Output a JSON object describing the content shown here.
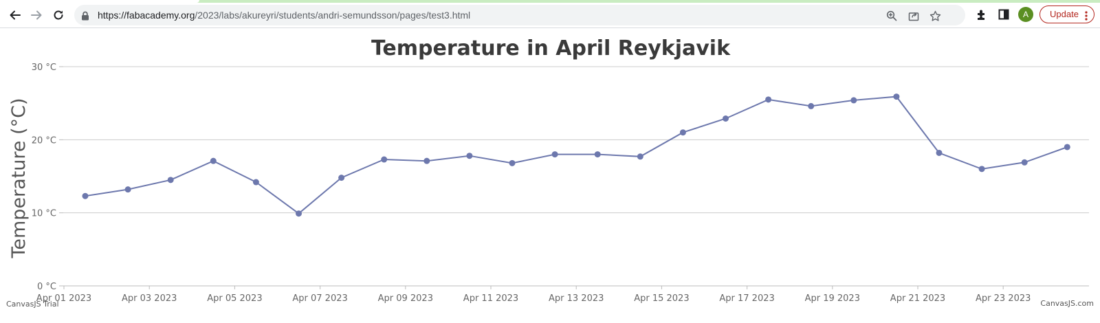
{
  "browser": {
    "url_host": "https://fabacademy.org",
    "url_path": "/2023/labs/akureyri/students/andri-semundsson/pages/test3.html",
    "avatar_initial": "A",
    "update_label": "Update",
    "icons": [
      "back-icon",
      "forward-icon",
      "reload-icon",
      "lock-icon",
      "zoom-icon",
      "share-icon",
      "star-icon",
      "extensions-icon",
      "side-panel-icon",
      "menu-dots-icon"
    ]
  },
  "credits": {
    "left": "CanvasJS Trial",
    "right": "CanvasJS.com"
  },
  "colors": {
    "line": "#6d78ad",
    "grid": "#cccccc",
    "title": "#3a3a3a"
  },
  "chart_data": {
    "type": "line",
    "title": "Temperature in April Reykjavik",
    "ylabel": "Temperature (°C)",
    "xlabel": "",
    "ylim": [
      0,
      30
    ],
    "y_ticks": [
      {
        "value": 0,
        "label": "0 °C"
      },
      {
        "value": 10,
        "label": "10 °C"
      },
      {
        "value": 20,
        "label": "20 °C"
      },
      {
        "value": 30,
        "label": "30 °C"
      }
    ],
    "x_ticks": [
      {
        "value": "2023-04-01",
        "label": "Apr 01 2023"
      },
      {
        "value": "2023-04-03",
        "label": "Apr 03 2023"
      },
      {
        "value": "2023-04-05",
        "label": "Apr 05 2023"
      },
      {
        "value": "2023-04-07",
        "label": "Apr 07 2023"
      },
      {
        "value": "2023-04-09",
        "label": "Apr 09 2023"
      },
      {
        "value": "2023-04-11",
        "label": "Apr 11 2023"
      },
      {
        "value": "2023-04-13",
        "label": "Apr 13 2023"
      },
      {
        "value": "2023-04-15",
        "label": "Apr 15 2023"
      },
      {
        "value": "2023-04-17",
        "label": "Apr 17 2023"
      },
      {
        "value": "2023-04-19",
        "label": "Apr 19 2023"
      },
      {
        "value": "2023-04-21",
        "label": "Apr 21 2023"
      },
      {
        "value": "2023-04-23",
        "label": "Apr 23 2023"
      }
    ],
    "grid": true,
    "series": [
      {
        "points": [
          {
            "x": "2023-04-01",
            "y": 12.3
          },
          {
            "x": "2023-04-02",
            "y": 13.2
          },
          {
            "x": "2023-04-03",
            "y": 14.5
          },
          {
            "x": "2023-04-04",
            "y": 17.1
          },
          {
            "x": "2023-04-05",
            "y": 14.2
          },
          {
            "x": "2023-04-06",
            "y": 9.9
          },
          {
            "x": "2023-04-07",
            "y": 14.8
          },
          {
            "x": "2023-04-08",
            "y": 17.3
          },
          {
            "x": "2023-04-09",
            "y": 17.1
          },
          {
            "x": "2023-04-10",
            "y": 17.8
          },
          {
            "x": "2023-04-11",
            "y": 16.8
          },
          {
            "x": "2023-04-12",
            "y": 18.0
          },
          {
            "x": "2023-04-13",
            "y": 18.0
          },
          {
            "x": "2023-04-14",
            "y": 17.7
          },
          {
            "x": "2023-04-15",
            "y": 21.0
          },
          {
            "x": "2023-04-16",
            "y": 22.9
          },
          {
            "x": "2023-04-17",
            "y": 25.5
          },
          {
            "x": "2023-04-18",
            "y": 24.6
          },
          {
            "x": "2023-04-19",
            "y": 25.4
          },
          {
            "x": "2023-04-20",
            "y": 25.9
          },
          {
            "x": "2023-04-21",
            "y": 18.2
          },
          {
            "x": "2023-04-22",
            "y": 16.0
          },
          {
            "x": "2023-04-23",
            "y": 16.9
          },
          {
            "x": "2023-04-24",
            "y": 19.0
          }
        ]
      }
    ]
  }
}
